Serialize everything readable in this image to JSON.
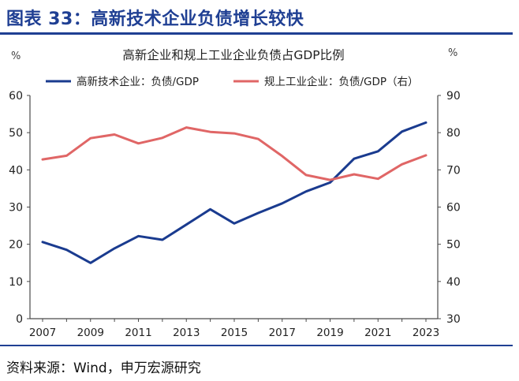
{
  "figure": {
    "title": "图表 33：高新技术企业负债增长较快",
    "source": "资料来源：Wind，申万宏源研究"
  },
  "colors": {
    "accent": "#1f3f93",
    "series_hitech": "#1a3b8f",
    "series_industrial": "#e06666"
  },
  "chart_data": {
    "type": "line",
    "title": "高新企业和规上工业企业负债占GDP比例",
    "left_unit": "%",
    "right_unit": "%",
    "x": [
      2007,
      2008,
      2009,
      2010,
      2011,
      2012,
      2013,
      2014,
      2015,
      2016,
      2017,
      2018,
      2019,
      2020,
      2021,
      2022,
      2023
    ],
    "x_tick_labels": [
      "2007",
      "2009",
      "2011",
      "2013",
      "2015",
      "2017",
      "2019",
      "2021",
      "2023"
    ],
    "y_left": {
      "min": 0,
      "max": 60,
      "ticks": [
        "0",
        "10",
        "20",
        "30",
        "40",
        "50",
        "60"
      ]
    },
    "y_right": {
      "min": 30,
      "max": 90,
      "ticks": [
        "30",
        "40",
        "50",
        "60",
        "70",
        "80",
        "90"
      ]
    },
    "grid": false,
    "legend_position": "top",
    "series": [
      {
        "name": "高新技术企业：负债/GDP",
        "axis": "left",
        "color": "#1a3b8f",
        "values": [
          20.6,
          18.5,
          15.0,
          18.9,
          22.2,
          21.2,
          25.3,
          29.4,
          25.6,
          28.4,
          31.0,
          34.2,
          36.6,
          43.0,
          45.0,
          50.3,
          52.7
        ]
      },
      {
        "name": "规上工业企业：负债/GDP（右）",
        "axis": "right",
        "color": "#e06666",
        "values": [
          72.8,
          73.8,
          78.5,
          79.5,
          77.1,
          78.6,
          81.4,
          80.2,
          79.8,
          78.3,
          73.7,
          68.6,
          67.3,
          68.8,
          67.6,
          71.5,
          73.9
        ]
      }
    ]
  }
}
